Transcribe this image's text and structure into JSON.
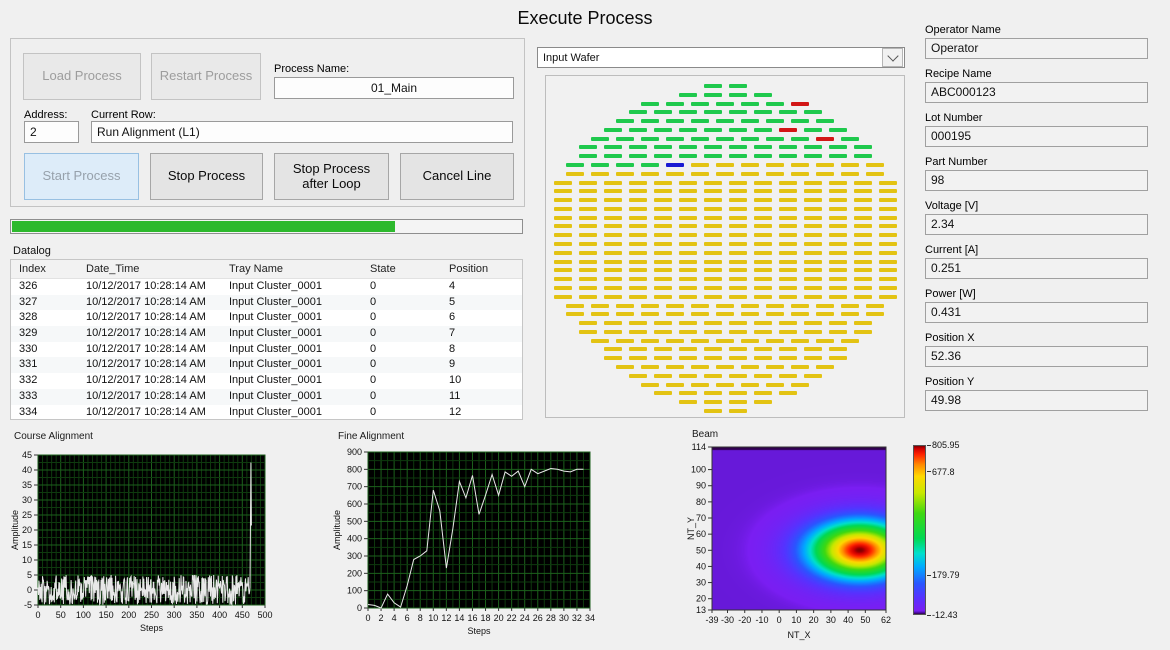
{
  "title": "Execute Process",
  "process_panel": {
    "load_button": "Load Process",
    "restart_button": "Restart Process",
    "process_name_label": "Process Name:",
    "process_name_value": "01_Main",
    "address_label": "Address:",
    "address_value": "2",
    "current_row_label": "Current Row:",
    "current_row_value": "Run Alignment (L1)",
    "start_button": "Start Process",
    "stop_button": "Stop Process",
    "stop_after_loop_button": "Stop Process after Loop",
    "cancel_line_button": "Cancel Line",
    "progress_percent": 75
  },
  "datalog": {
    "label": "Datalog",
    "columns": [
      "Index",
      "Date_Time",
      "Tray Name",
      "State",
      "Position"
    ],
    "rows": [
      [
        "326",
        "10/12/2017 10:28:14 AM",
        "Input Cluster_0001",
        "0",
        "4"
      ],
      [
        "327",
        "10/12/2017 10:28:14 AM",
        "Input Cluster_0001",
        "0",
        "5"
      ],
      [
        "328",
        "10/12/2017 10:28:14 AM",
        "Input Cluster_0001",
        "0",
        "6"
      ],
      [
        "329",
        "10/12/2017 10:28:14 AM",
        "Input Cluster_0001",
        "0",
        "7"
      ],
      [
        "330",
        "10/12/2017 10:28:14 AM",
        "Input Cluster_0001",
        "0",
        "8"
      ],
      [
        "331",
        "10/12/2017 10:28:14 AM",
        "Input Cluster_0001",
        "0",
        "9"
      ],
      [
        "332",
        "10/12/2017 10:28:14 AM",
        "Input Cluster_0001",
        "0",
        "10"
      ],
      [
        "333",
        "10/12/2017 10:28:14 AM",
        "Input Cluster_0001",
        "0",
        "11"
      ],
      [
        "334",
        "10/12/2017 10:28:14 AM",
        "Input Cluster_0001",
        "0",
        "12"
      ]
    ]
  },
  "wafer": {
    "selector_value": "Input Wafer",
    "colors": {
      "green": "#1fc94d",
      "yellow": "#e3c313",
      "red": "#d21616",
      "blue": "#1a1ad2"
    },
    "row_counts": [
      2,
      4,
      7,
      8,
      9,
      10,
      11,
      12,
      12,
      13,
      13,
      14,
      14,
      14,
      14,
      14,
      14,
      14,
      14,
      14,
      14,
      14,
      14,
      14,
      14,
      13,
      13,
      12,
      12,
      11,
      10,
      10,
      9,
      8,
      7,
      6,
      4,
      2
    ],
    "full_green_rows": 9,
    "transition_row": {
      "row": 9,
      "green_cols": 4
    },
    "special_cells": [
      {
        "row": 2,
        "col": 6,
        "color": "red"
      },
      {
        "row": 5,
        "col": 7,
        "color": "red"
      },
      {
        "row": 6,
        "col": 9,
        "color": "red"
      },
      {
        "row": 9,
        "col": 4,
        "color": "blue"
      }
    ]
  },
  "readouts": [
    {
      "label": "Operator Name",
      "value": "Operator"
    },
    {
      "label": "Recipe Name",
      "value": "ABC000123"
    },
    {
      "label": "Lot Number",
      "value": "000195"
    },
    {
      "label": "Part Number",
      "value": "98"
    },
    {
      "label": "Voltage [V]",
      "value": "2.34"
    },
    {
      "label": "Current [A]",
      "value": "0.251"
    },
    {
      "label": "Power [W]",
      "value": "0.431"
    },
    {
      "label": "Position X",
      "value": "52.36"
    },
    {
      "label": "Position Y",
      "value": "49.98"
    }
  ],
  "chart_data": [
    {
      "id": "course",
      "type": "line",
      "title": "Course Alignment",
      "xlabel": "Steps",
      "ylabel": "Amplitude",
      "xlim": [
        0,
        500
      ],
      "ylim": [
        -5,
        45
      ],
      "x_ticks": [
        0,
        50,
        100,
        150,
        200,
        250,
        300,
        350,
        400,
        450,
        500
      ],
      "y_ticks": [
        -5,
        0,
        5,
        10,
        15,
        20,
        25,
        30,
        35,
        40,
        45
      ],
      "grid": {
        "x_minor": 10,
        "x_major": 50,
        "y_minor": 2.5,
        "y_major": 5
      },
      "colors": {
        "bg": "#000000",
        "grid_minor": "#0e3a0e",
        "grid_major": "#1c611c",
        "line": "#e8e8e8"
      },
      "series_spec": {
        "kind": "noise",
        "points": 468,
        "min": -5,
        "max": 5,
        "seed": 20171012,
        "tail": [
          [
            469,
            42.5
          ],
          [
            470,
            21.5
          ]
        ]
      }
    },
    {
      "id": "fine",
      "type": "line",
      "title": "Fine Alignment",
      "xlabel": "Steps",
      "ylabel": "Amplitude",
      "xlim": [
        0,
        34
      ],
      "ylim": [
        0,
        900
      ],
      "x_ticks": [
        0,
        2,
        4,
        6,
        8,
        10,
        12,
        14,
        16,
        18,
        20,
        22,
        24,
        26,
        28,
        30,
        32,
        34
      ],
      "y_ticks": [
        0,
        100,
        200,
        300,
        400,
        500,
        600,
        700,
        800,
        900
      ],
      "grid": {
        "x_minor": 1,
        "x_major": 2,
        "y_minor": 50,
        "y_major": 100
      },
      "colors": {
        "bg": "#000000",
        "grid_minor": "#0e3a0e",
        "grid_major": "#1c611c",
        "line": "#e8e8e8"
      },
      "values": [
        20,
        15,
        0,
        80,
        30,
        5,
        130,
        280,
        300,
        330,
        680,
        560,
        230,
        460,
        730,
        635,
        765,
        540,
        650,
        770,
        650,
        785,
        760,
        790,
        700,
        800,
        775,
        790,
        805,
        800,
        790,
        785,
        800,
        800
      ]
    },
    {
      "id": "beam",
      "type": "heatmap",
      "title": "Beam",
      "xlabel": "NT_X",
      "ylabel": "NT_Y",
      "xlim": [
        -39,
        62
      ],
      "ylim": [
        13,
        114
      ],
      "x_ticks": [
        -39,
        -30,
        -20,
        -10,
        0,
        10,
        20,
        30,
        40,
        50,
        62
      ],
      "y_ticks": [
        13,
        20,
        30,
        40,
        50,
        60,
        70,
        80,
        90,
        100,
        114
      ],
      "gaussian": {
        "cx": 47,
        "cy": 50,
        "sigma_x": 20,
        "sigma_y": 12,
        "peak": 806,
        "base": 0
      },
      "colorbar": {
        "min": -12.43,
        "max": 805.95,
        "labels": [
          805.95,
          677.8,
          179.79,
          -12.43
        ]
      },
      "colormap": [
        [
          0.0,
          "#30004d"
        ],
        [
          0.012,
          "#5b16c9"
        ],
        [
          0.02,
          "#7a1ef2"
        ],
        [
          0.1,
          "#5533ff"
        ],
        [
          0.18,
          "#2a55ff"
        ],
        [
          0.28,
          "#00aaff"
        ],
        [
          0.36,
          "#00e0cc"
        ],
        [
          0.45,
          "#00d852"
        ],
        [
          0.6,
          "#3fd810"
        ],
        [
          0.72,
          "#c8e800"
        ],
        [
          0.82,
          "#ffd800"
        ],
        [
          0.89,
          "#ff8800"
        ],
        [
          0.95,
          "#ff2200"
        ],
        [
          0.985,
          "#cc0000"
        ],
        [
          1.0,
          "#7f0000"
        ]
      ]
    }
  ]
}
